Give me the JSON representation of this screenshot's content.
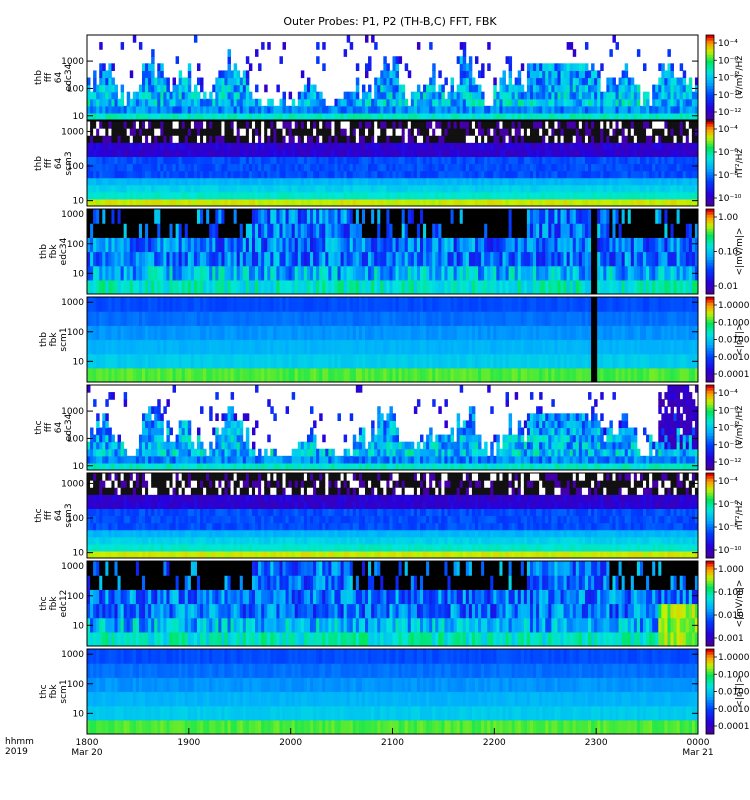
{
  "title": "Outer Probes: P1, P2 (TH-B,C) FFT, FBK",
  "chart_data": {
    "type": "heatmap",
    "title": "Outer Probes: P1, P2 (TH-B,C) FFT, FBK",
    "x_axis": {
      "label_lines": [
        "hhmm",
        "2019"
      ],
      "start": "2019-03-20T18:00",
      "end": "2019-03-21T00:00",
      "ticks": [
        {
          "label": "1800",
          "sublabel": "Mar 20"
        },
        {
          "label": "1900",
          "sublabel": ""
        },
        {
          "label": "2000",
          "sublabel": ""
        },
        {
          "label": "2100",
          "sublabel": ""
        },
        {
          "label": "2200",
          "sublabel": ""
        },
        {
          "label": "2300",
          "sublabel": ""
        },
        {
          "label": "0000",
          "sublabel": "Mar 21"
        }
      ]
    },
    "y_scale": "log",
    "panels": [
      {
        "label_lines": [
          "thb",
          "fff",
          "64",
          "edc34"
        ],
        "yticks": [
          "10",
          "100",
          "1000"
        ],
        "ylim": [
          7,
          9000
        ],
        "colorbar_label": "(V/m)²/Hz",
        "colorbar_ticks": [
          "10⁻⁴",
          "10⁻⁶",
          "10⁻⁸",
          "10⁻¹⁰",
          "10⁻¹²"
        ],
        "pattern": "fffe"
      },
      {
        "label_lines": [
          "thb",
          "fff",
          "64",
          "scm3"
        ],
        "yticks": [
          "10",
          "100",
          "1000"
        ],
        "ylim": [
          7,
          2000
        ],
        "colorbar_label": "nT²/Hz",
        "colorbar_ticks": [
          "10⁻⁴",
          "10⁻⁶",
          "10⁻⁸",
          "10⁻¹⁰"
        ],
        "pattern": "fffb"
      },
      {
        "label_lines": [
          "thb",
          "fbk",
          "edc34"
        ],
        "yticks": [
          "10",
          "100",
          "1000"
        ],
        "ylim": [
          2,
          1500
        ],
        "colorbar_label": "<|mV/m|>",
        "colorbar_ticks": [
          "1.00",
          "0.10",
          "0.01"
        ],
        "pattern": "fbke",
        "gap_hours": [
          4.93,
          5.0
        ]
      },
      {
        "label_lines": [
          "thb",
          "fbk",
          "scm1"
        ],
        "yticks": [
          "10",
          "100",
          "1000"
        ],
        "ylim": [
          2,
          1500
        ],
        "colorbar_label": "<|nT|>",
        "colorbar_ticks": [
          "1.0000",
          "0.1000",
          "0.0100",
          "0.0010",
          "0.0001"
        ],
        "pattern": "fbkb",
        "gap_hours": [
          4.93,
          5.0
        ]
      },
      {
        "label_lines": [
          "thc",
          "fff",
          "64",
          "edc34"
        ],
        "yticks": [
          "10",
          "100",
          "1000"
        ],
        "ylim": [
          7,
          9000
        ],
        "colorbar_label": "(V/m)²/Hz",
        "colorbar_ticks": [
          "10⁻⁴",
          "10⁻⁶",
          "10⁻⁸",
          "10⁻¹⁰",
          "10⁻¹²"
        ],
        "pattern": "fffe2"
      },
      {
        "label_lines": [
          "thc",
          "fff",
          "64",
          "scm3"
        ],
        "yticks": [
          "10",
          "100",
          "1000"
        ],
        "ylim": [
          7,
          2000
        ],
        "colorbar_label": "nT²/Hz",
        "colorbar_ticks": [
          "10⁻⁴",
          "10⁻⁶",
          "10⁻⁸",
          "10⁻¹⁰"
        ],
        "pattern": "fffb"
      },
      {
        "label_lines": [
          "thc",
          "fbk",
          "edc12"
        ],
        "yticks": [
          "10",
          "100",
          "1000"
        ],
        "ylim": [
          2,
          1500
        ],
        "colorbar_label": "<|mV/m|>",
        "colorbar_ticks": [
          "1.000",
          "0.100",
          "0.010",
          "0.001"
        ],
        "pattern": "fbke2"
      },
      {
        "label_lines": [
          "thc",
          "fbk",
          "scm1"
        ],
        "yticks": [
          "10",
          "100",
          "1000"
        ],
        "ylim": [
          2,
          1500
        ],
        "colorbar_label": "<|nT|>",
        "colorbar_ticks": [
          "1.0000",
          "0.1000",
          "0.0100",
          "0.0010",
          "0.0001"
        ],
        "pattern": "fbkc"
      }
    ]
  }
}
